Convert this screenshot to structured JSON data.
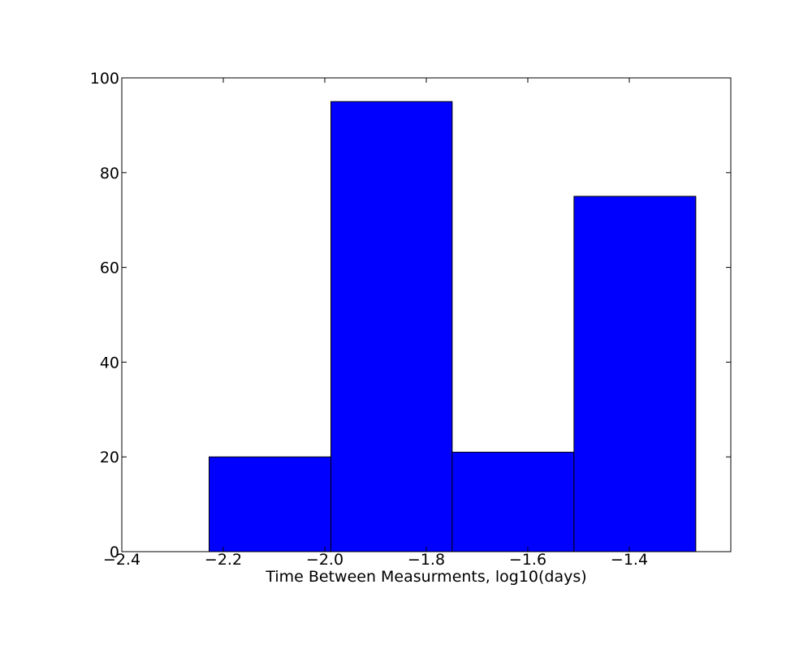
{
  "chart_data": {
    "type": "bar",
    "title": "",
    "xlabel": "Time Between Measurments, log10(days)",
    "ylabel": "",
    "xlim": [
      -2.4,
      -1.2
    ],
    "ylim": [
      0,
      100
    ],
    "bins": [
      {
        "x0": -2.228,
        "x1": -1.988,
        "value": 20
      },
      {
        "x0": -1.988,
        "x1": -1.749,
        "value": 95
      },
      {
        "x0": -1.749,
        "x1": -1.509,
        "value": 21
      },
      {
        "x0": -1.509,
        "x1": -1.269,
        "value": 75
      }
    ],
    "x_ticks": [
      -2.4,
      -2.2,
      -2.0,
      -1.8,
      -1.6,
      -1.4
    ],
    "x_tick_labels": [
      "−2.4",
      "−2.2",
      "−2.0",
      "−1.8",
      "−1.6",
      "−1.4"
    ],
    "y_ticks": [
      0,
      20,
      40,
      60,
      80,
      100
    ],
    "y_tick_labels": [
      "0",
      "20",
      "40",
      "60",
      "80",
      "100"
    ],
    "bar_color": "#0000ff",
    "edge_color": "#000000",
    "grid": false
  }
}
